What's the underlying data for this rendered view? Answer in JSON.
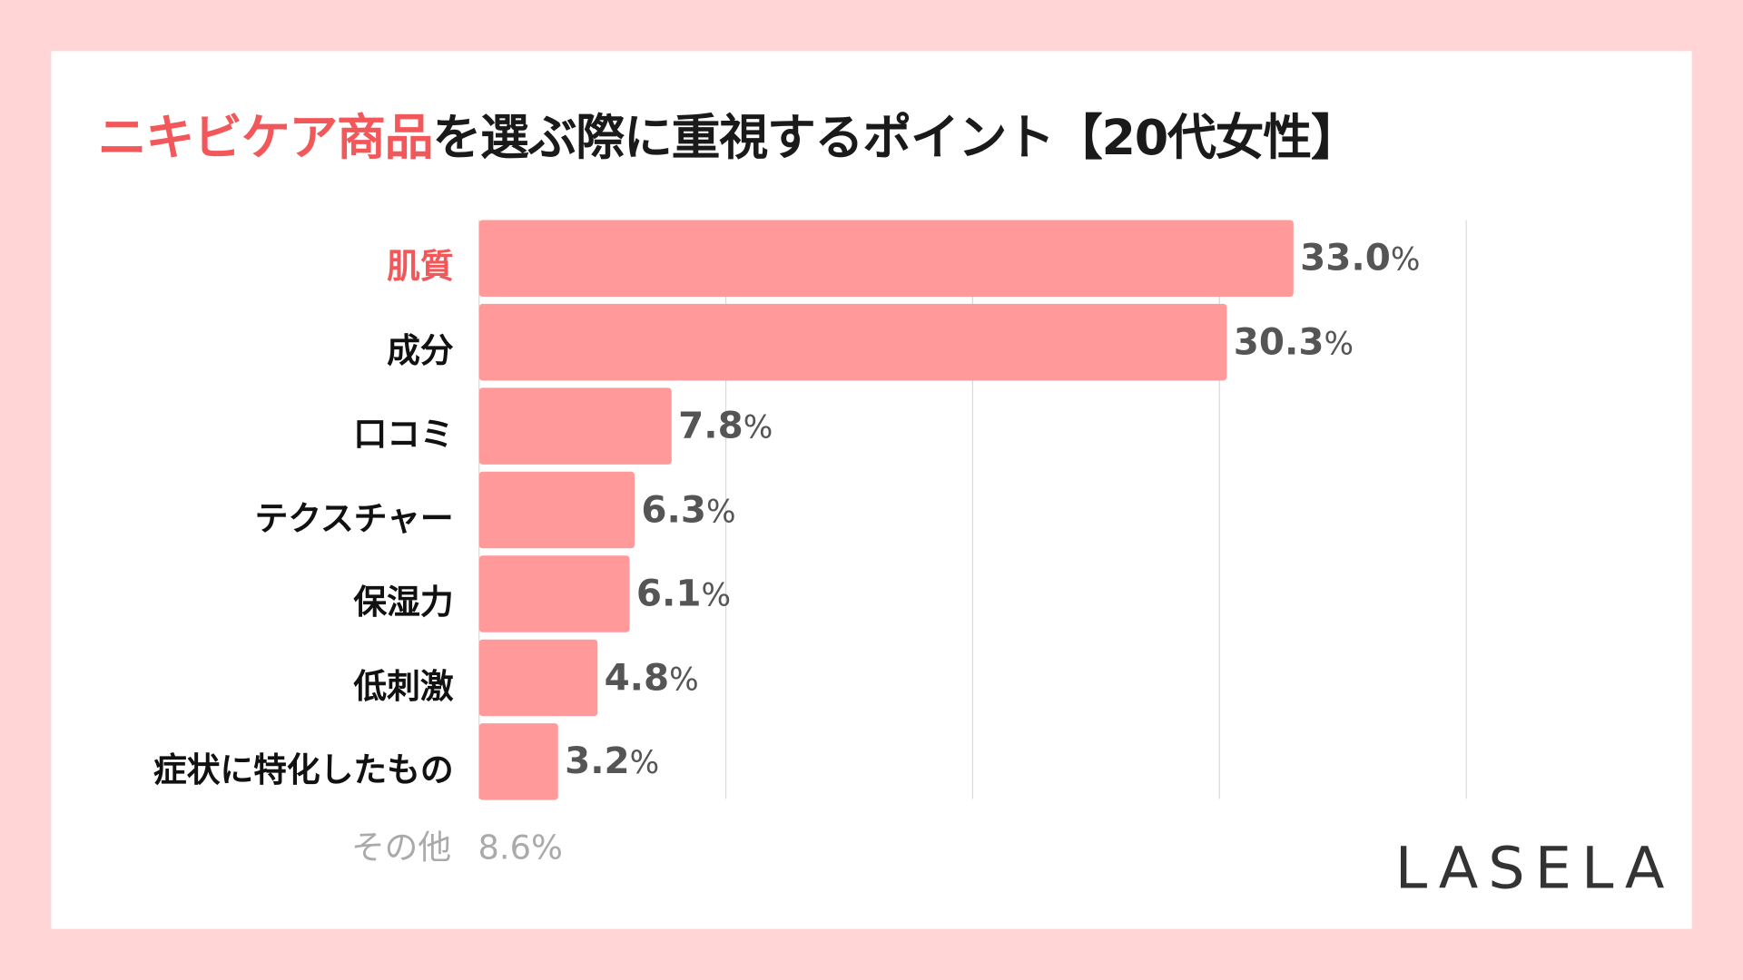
{
  "title": {
    "highlight": "ニキビケア商品",
    "rest": "を選ぶ際に重視するポイント【20代女性】"
  },
  "colors": {
    "bar": "#ff999a",
    "highlight": "#f2575a",
    "grid": "#d9d9d9",
    "background": "#ffd5d6"
  },
  "chart_data": {
    "type": "bar",
    "orientation": "horizontal",
    "title": "ニキビケア商品を選ぶ際に重視するポイント【20代女性】",
    "categories": [
      "肌質",
      "成分",
      "口コミ",
      "テクスチャー",
      "保湿力",
      "低刺激",
      "症状に特化したもの"
    ],
    "values": [
      33.0,
      30.3,
      7.8,
      6.3,
      6.1,
      4.8,
      3.2
    ],
    "labels": [
      "33.0",
      "30.3",
      "7.8",
      "6.3",
      "6.1",
      "4.8",
      "3.2"
    ],
    "unit": "%",
    "xlim": [
      0,
      40
    ],
    "grid": true,
    "highlight_category": "肌質"
  },
  "other": {
    "label": "その他",
    "value": "8.6",
    "unit": "%"
  },
  "logo": "LASELA"
}
